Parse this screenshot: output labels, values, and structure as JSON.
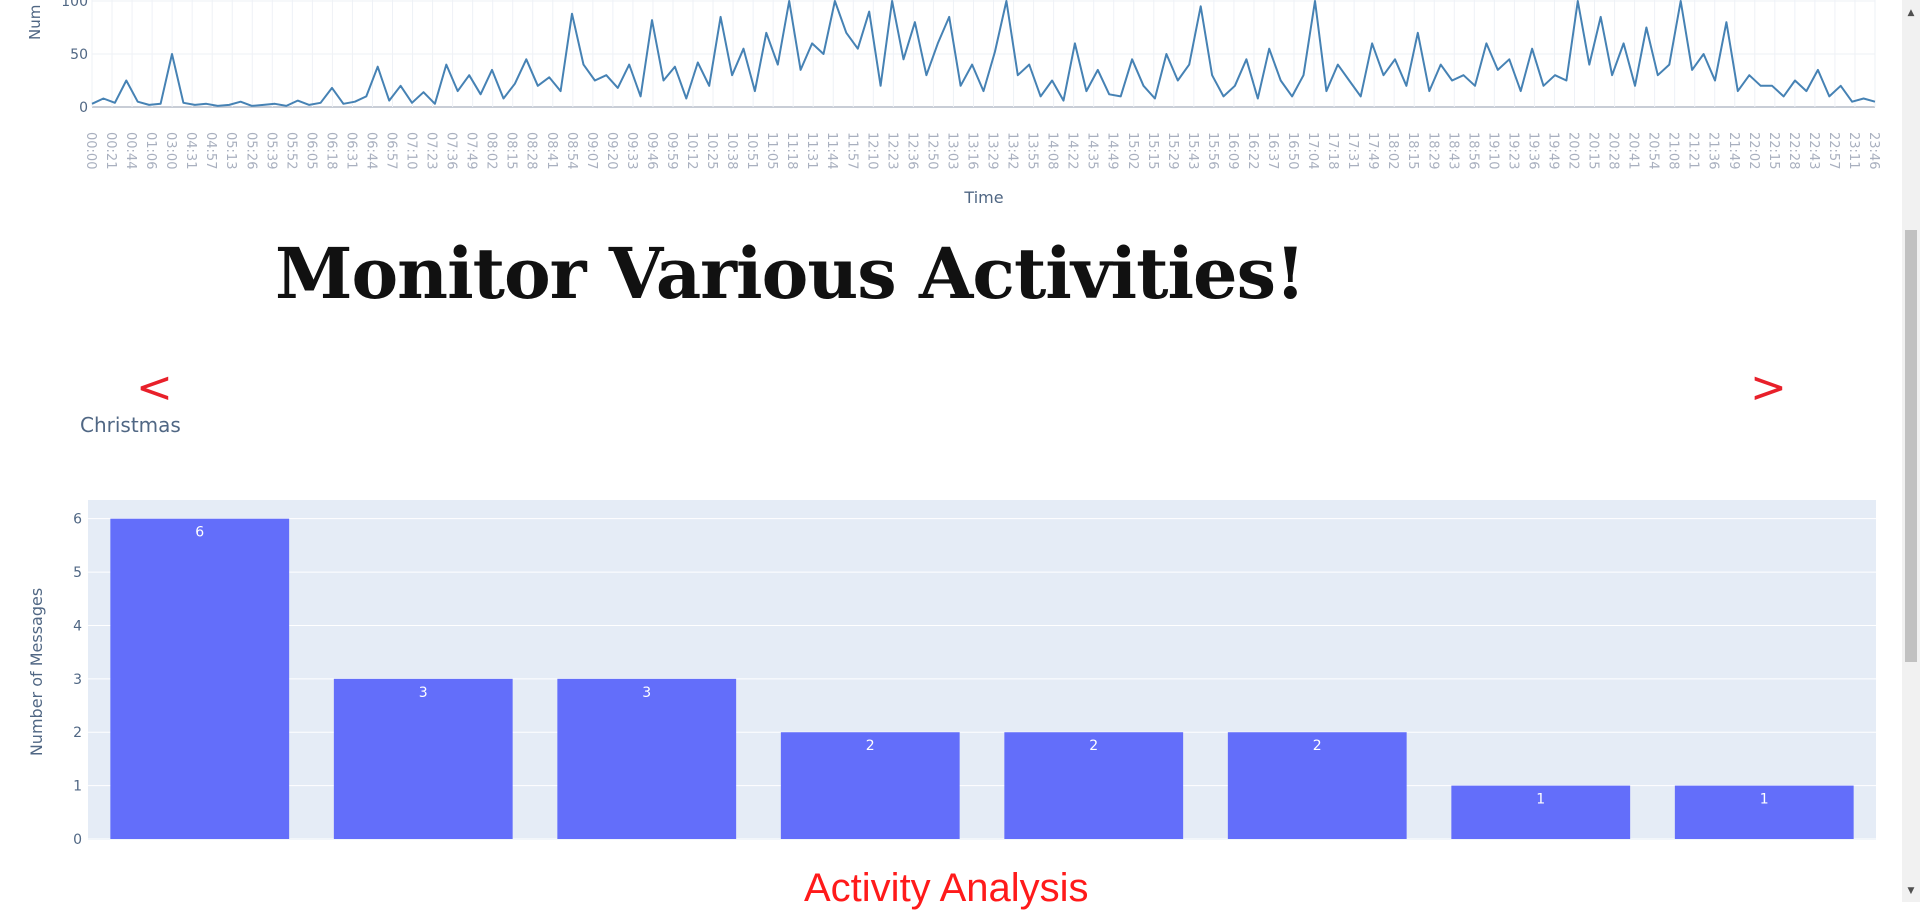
{
  "chart_data": [
    {
      "type": "line",
      "xlabel": "Time",
      "ylabel": "Num",
      "ylim": [
        0,
        100
      ],
      "yticks": [
        "0",
        "50",
        "100"
      ],
      "grid": true,
      "line_color": "#4682b4",
      "x_tick_labels": [
        "00:00",
        "00:21",
        "00:44",
        "01:06",
        "03:00",
        "04:31",
        "04:57",
        "05:13",
        "05:26",
        "05:39",
        "05:52",
        "06:05",
        "06:18",
        "06:31",
        "06:44",
        "06:57",
        "07:10",
        "07:23",
        "07:36",
        "07:49",
        "08:02",
        "08:15",
        "08:28",
        "08:41",
        "08:54",
        "09:07",
        "09:20",
        "09:33",
        "09:46",
        "09:59",
        "10:12",
        "10:25",
        "10:38",
        "10:51",
        "11:05",
        "11:18",
        "11:31",
        "11:44",
        "11:57",
        "12:10",
        "12:23",
        "12:36",
        "12:50",
        "13:03",
        "13:16",
        "13:29",
        "13:42",
        "13:55",
        "14:08",
        "14:22",
        "14:35",
        "14:49",
        "15:02",
        "15:15",
        "15:29",
        "15:43",
        "15:56",
        "16:09",
        "16:22",
        "16:37",
        "16:50",
        "17:04",
        "17:18",
        "17:31",
        "17:49",
        "18:02",
        "18:15",
        "18:29",
        "18:43",
        "18:56",
        "19:10",
        "19:23",
        "19:36",
        "19:49",
        "20:02",
        "20:15",
        "20:28",
        "20:41",
        "20:54",
        "21:08",
        "21:21",
        "21:36",
        "21:49",
        "22:02",
        "22:15",
        "22:28",
        "22:43",
        "22:57",
        "23:11",
        "23:46"
      ],
      "values": [
        3,
        8,
        4,
        25,
        5,
        2,
        3,
        50,
        4,
        2,
        3,
        1,
        2,
        5,
        1,
        2,
        3,
        1,
        6,
        2,
        4,
        18,
        3,
        5,
        10,
        38,
        6,
        20,
        4,
        14,
        3,
        40,
        15,
        30,
        12,
        35,
        8,
        22,
        45,
        20,
        28,
        15,
        88,
        40,
        25,
        30,
        18,
        40,
        10,
        82,
        25,
        38,
        8,
        42,
        20,
        85,
        30,
        55,
        15,
        70,
        40,
        100,
        35,
        60,
        50,
        100,
        70,
        55,
        90,
        20,
        100,
        45,
        80,
        30,
        60,
        85,
        20,
        40,
        15,
        52,
        100,
        30,
        40,
        10,
        25,
        6,
        60,
        15,
        35,
        12,
        10,
        45,
        20,
        8,
        50,
        25,
        40,
        95,
        30,
        10,
        20,
        45,
        8,
        55,
        25,
        10,
        30,
        100,
        15,
        40,
        25,
        10,
        60,
        30,
        45,
        20,
        70,
        15,
        40,
        25,
        30,
        20,
        60,
        35,
        45,
        15,
        55,
        20,
        30,
        25,
        100,
        40,
        85,
        30,
        60,
        20,
        75,
        30,
        40,
        100,
        35,
        50,
        25,
        80,
        15,
        30,
        20,
        20,
        10,
        25,
        15,
        35,
        10,
        20,
        5,
        8,
        5
      ],
      "values_note_free": true
    },
    {
      "type": "bar",
      "ylabel": "Number of Messages",
      "ylim": [
        0,
        6.35
      ],
      "yticks": [
        "0",
        "1",
        "2",
        "3",
        "4",
        "5",
        "6"
      ],
      "grid": true,
      "bar_color": "#636efa",
      "values": [
        6,
        3,
        3,
        2,
        2,
        2,
        1,
        1
      ],
      "data_labels": [
        "6",
        "3",
        "3",
        "2",
        "2",
        "2",
        "1",
        "1"
      ]
    }
  ],
  "header": {
    "title": "Monitor Various Activities!"
  },
  "carousel": {
    "prev_label": "<",
    "next_label": ">",
    "current_label": "Christmas"
  },
  "section": {
    "title": "Activity Analysis"
  },
  "colors": {
    "accent_red": "#e8202a",
    "plot_bg": "#e5ecf6",
    "axis_text": "#506784"
  }
}
